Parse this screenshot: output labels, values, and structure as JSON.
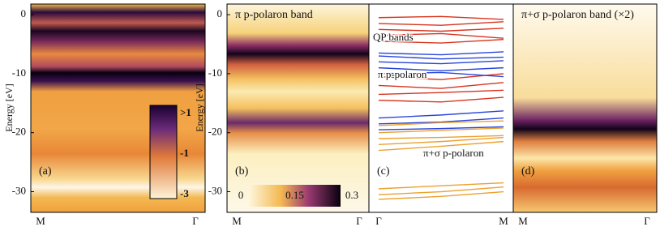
{
  "chart_data": [
    {
      "type": "heatmap",
      "label": "(a)",
      "ylabel": "Energy [eV]",
      "categories": [
        "M",
        "Γ"
      ],
      "ylim": [
        -33.5,
        1.8
      ],
      "yticks": [
        0,
        -10,
        -20,
        -30
      ],
      "clim": [
        -3.2,
        1.4
      ],
      "cticks": [
        {
          "value": 1,
          "label": ">1"
        },
        -1,
        -3
      ]
    },
    {
      "type": "heatmap",
      "label": "(b)",
      "title": "π  p-polaron band",
      "ylabel": "Energy [eV]",
      "categories": [
        "M",
        "Γ"
      ],
      "ylim": [
        -33.5,
        1.8
      ],
      "yticks": [
        0,
        -10,
        -20,
        -30
      ],
      "clim": [
        0,
        0.3
      ],
      "cticks": [
        0,
        0.15,
        0.3
      ]
    },
    {
      "type": "line",
      "label": "(c)",
      "categories": [
        "Γ",
        null,
        "M"
      ],
      "ylim": [
        -33.5,
        1.8
      ],
      "series": [
        {
          "name": "QP bands",
          "color": "#d8341e",
          "bands": [
            [
              -0.5,
              -0.3,
              -0.8
            ],
            [
              -1.5,
              -1.8,
              -1.2
            ],
            [
              -2.5,
              -2.8,
              -2.3
            ],
            [
              -3.5,
              -3.2,
              -4
            ],
            [
              -4.5,
              -4.8,
              -4.2
            ],
            [
              -10.5,
              -11,
              -10
            ],
            [
              -12,
              -12.5,
              -11.5
            ],
            [
              -13.5,
              -13.2,
              -12.8
            ],
            [
              -14.5,
              -14.8,
              -14
            ]
          ]
        },
        {
          "name": "π  p-polaron",
          "color": "#2a46d8",
          "bands": [
            [
              -6.5,
              -6.8,
              -6.3
            ],
            [
              -7,
              -7.5,
              -7.2
            ],
            [
              -8,
              -8.3,
              -7.8
            ],
            [
              -9,
              -9.5,
              -9
            ],
            [
              -10,
              -9.8,
              -10.5
            ],
            [
              -17.5,
              -17,
              -16.3
            ],
            [
              -18.5,
              -18.2,
              -17.5
            ],
            [
              -19.5,
              -19.3,
              -19
            ]
          ]
        },
        {
          "name": "π+σ  p-polaron",
          "color": "#eca030",
          "bands": [
            [
              -18.8,
              -18.3,
              -18
            ],
            [
              -20,
              -19.6,
              -19.2
            ],
            [
              -21,
              -20.8,
              -20.5
            ],
            [
              -22,
              -21.5,
              -20.8
            ],
            [
              -23,
              -22.3,
              -21.5
            ],
            [
              -29.5,
              -29,
              -28.5
            ],
            [
              -30.5,
              -30,
              -29.2
            ],
            [
              -31.3,
              -30.8,
              -30
            ]
          ]
        }
      ]
    },
    {
      "type": "heatmap",
      "label": "(d)",
      "title": "π+σ  p-polaron band (×2)",
      "categories": [
        "M",
        "Γ"
      ],
      "ylim": [
        -33.5,
        1.8
      ]
    }
  ]
}
